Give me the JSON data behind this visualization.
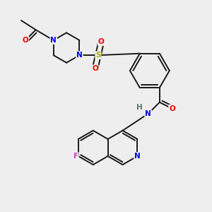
{
  "bg_color": "#eeeeee",
  "bond_color": "#1a1a1a",
  "bond_width": 1.4,
  "atom_colors": {
    "N": "#0000ee",
    "O": "#ee0000",
    "S": "#aaaa00",
    "F": "#cc44cc",
    "H": "#557777",
    "C": "#1a1a1a"
  },
  "font_size": 7.5
}
